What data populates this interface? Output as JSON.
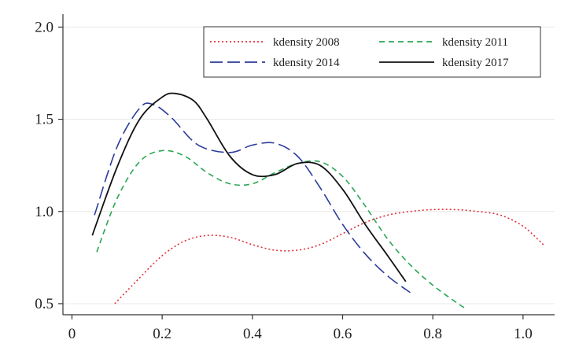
{
  "chart_data": {
    "type": "line",
    "title": "",
    "xlabel": "",
    "ylabel": "",
    "xlim": [
      -0.02,
      1.07
    ],
    "ylim": [
      0.44,
      2.07
    ],
    "xticks": [
      0,
      0.2,
      0.4,
      0.6,
      0.8,
      1.0
    ],
    "xtick_labels": [
      "0",
      "0.2",
      "0.4",
      "0.6",
      "0.8",
      "1.0"
    ],
    "yticks": [
      0.5,
      1.0,
      1.5,
      2.0
    ],
    "ytick_labels": [
      "0.5",
      "1.0",
      "1.5",
      "2.0"
    ],
    "grid": "horizontal",
    "legend_position": "top-right",
    "series": [
      {
        "name": "kdensity 2008",
        "color": "#e0303a",
        "dash": "dotted",
        "x": [
          0.095,
          0.15,
          0.2,
          0.25,
          0.3,
          0.35,
          0.4,
          0.45,
          0.5,
          0.55,
          0.6,
          0.65,
          0.7,
          0.75,
          0.8,
          0.85,
          0.9,
          0.95,
          1.0,
          1.045
        ],
        "y": [
          0.5,
          0.64,
          0.76,
          0.84,
          0.87,
          0.86,
          0.82,
          0.79,
          0.79,
          0.82,
          0.88,
          0.94,
          0.98,
          1.0,
          1.01,
          1.01,
          1.0,
          0.98,
          0.92,
          0.82
        ]
      },
      {
        "name": "kdensity 2011",
        "color": "#2aa653",
        "dash": "dashed",
        "x": [
          0.055,
          0.1,
          0.15,
          0.2,
          0.25,
          0.3,
          0.35,
          0.4,
          0.45,
          0.5,
          0.55,
          0.6,
          0.65,
          0.7,
          0.75,
          0.8,
          0.85,
          0.875
        ],
        "y": [
          0.78,
          1.07,
          1.27,
          1.33,
          1.3,
          1.21,
          1.15,
          1.15,
          1.21,
          1.26,
          1.27,
          1.19,
          1.03,
          0.85,
          0.71,
          0.6,
          0.51,
          0.47
        ]
      },
      {
        "name": "kdensity 2014",
        "color": "#2b3b9a",
        "dash": "longdash",
        "x": [
          0.05,
          0.1,
          0.15,
          0.18,
          0.22,
          0.28,
          0.35,
          0.4,
          0.45,
          0.5,
          0.55,
          0.6,
          0.65,
          0.7,
          0.75
        ],
        "y": [
          0.98,
          1.35,
          1.56,
          1.58,
          1.51,
          1.36,
          1.32,
          1.36,
          1.37,
          1.3,
          1.13,
          0.93,
          0.77,
          0.65,
          0.56
        ]
      },
      {
        "name": "kdensity 2017",
        "color": "#111111",
        "dash": "solid",
        "x": [
          0.045,
          0.1,
          0.15,
          0.2,
          0.23,
          0.27,
          0.3,
          0.35,
          0.4,
          0.45,
          0.5,
          0.55,
          0.6,
          0.65,
          0.7,
          0.74
        ],
        "y": [
          0.87,
          1.24,
          1.5,
          1.62,
          1.64,
          1.6,
          1.5,
          1.3,
          1.2,
          1.2,
          1.26,
          1.25,
          1.12,
          0.93,
          0.76,
          0.62
        ]
      }
    ]
  }
}
